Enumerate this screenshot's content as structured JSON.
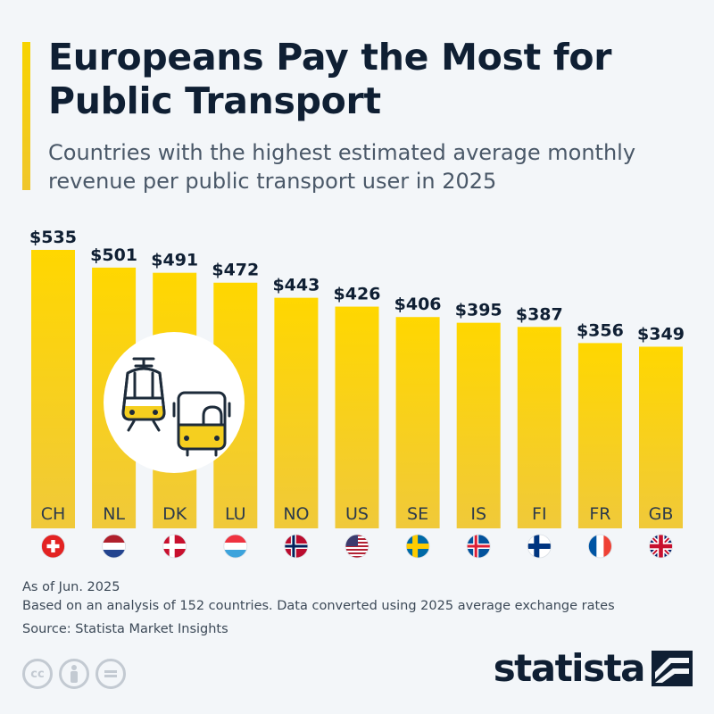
{
  "header": {
    "title": "Europeans Pay the Most for Public Transport",
    "subtitle": "Countries with the highest estimated average monthly revenue per public transport user in 2025"
  },
  "colors": {
    "bar_top": "#ffd700",
    "bar_bottom": "#f0c93a",
    "accent": "#f5cf1f",
    "text_dark": "#0f1f33"
  },
  "chart_data": {
    "type": "bar",
    "title": "Europeans Pay the Most for Public Transport",
    "subtitle": "Countries with the highest estimated average monthly revenue per public transport user in 2025",
    "categories": [
      "CH",
      "NL",
      "DK",
      "LU",
      "NO",
      "US",
      "SE",
      "IS",
      "FI",
      "FR",
      "GB"
    ],
    "values": [
      535,
      501,
      491,
      472,
      443,
      426,
      406,
      395,
      387,
      356,
      349
    ],
    "value_labels": [
      "$535",
      "$501",
      "$491",
      "$472",
      "$443",
      "$426",
      "$406",
      "$395",
      "$387",
      "$356",
      "$349"
    ],
    "flags": [
      "flag-switzerland-icon",
      "flag-netherlands-icon",
      "flag-denmark-icon",
      "flag-luxembourg-icon",
      "flag-norway-icon",
      "flag-usa-icon",
      "flag-sweden-icon",
      "flag-iceland-icon",
      "flag-finland-icon",
      "flag-france-icon",
      "flag-uk-icon"
    ],
    "xlabel": "",
    "ylabel": "",
    "unit": "USD",
    "ylim": [
      0,
      535
    ],
    "grid": false,
    "legend": "none"
  },
  "illustration": {
    "icons": [
      "tram-icon",
      "bus-icon"
    ]
  },
  "footer": {
    "note_date": "As of Jun. 2025",
    "note_method": "Based on an analysis of 152 countries. Data converted using 2025 average exchange rates",
    "source": "Source: Statista Market Insights",
    "brand": "statista",
    "license_icons": [
      "cc-icon",
      "attribution-icon",
      "no-derivatives-icon"
    ]
  }
}
